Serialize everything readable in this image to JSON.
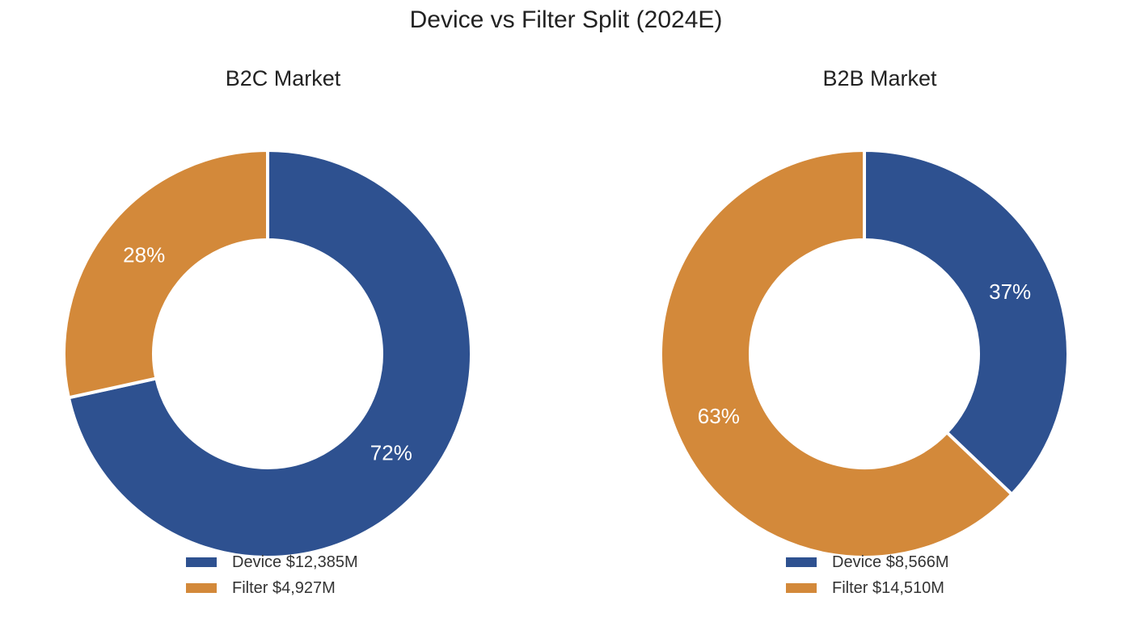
{
  "chart_data": {
    "title": "Device vs Filter Split (2024E)",
    "charts": [
      {
        "type": "pie",
        "title": "B2C Market",
        "categories": [
          "Device",
          "Filter"
        ],
        "values": [
          12385,
          4927
        ],
        "labels": [
          "72%",
          "28%"
        ],
        "legend": [
          "Device $12,385M",
          "Filter $4,927M"
        ],
        "colors": [
          "#2e5190",
          "#d3893a"
        ]
      },
      {
        "type": "pie",
        "title": "B2B Market",
        "categories": [
          "Device",
          "Filter"
        ],
        "values": [
          8566,
          14510
        ],
        "labels": [
          "37%",
          "63%"
        ],
        "legend": [
          "Device $8,566M",
          "Filter $14,510M"
        ],
        "colors": [
          "#2e5190",
          "#d3893a"
        ]
      }
    ]
  }
}
